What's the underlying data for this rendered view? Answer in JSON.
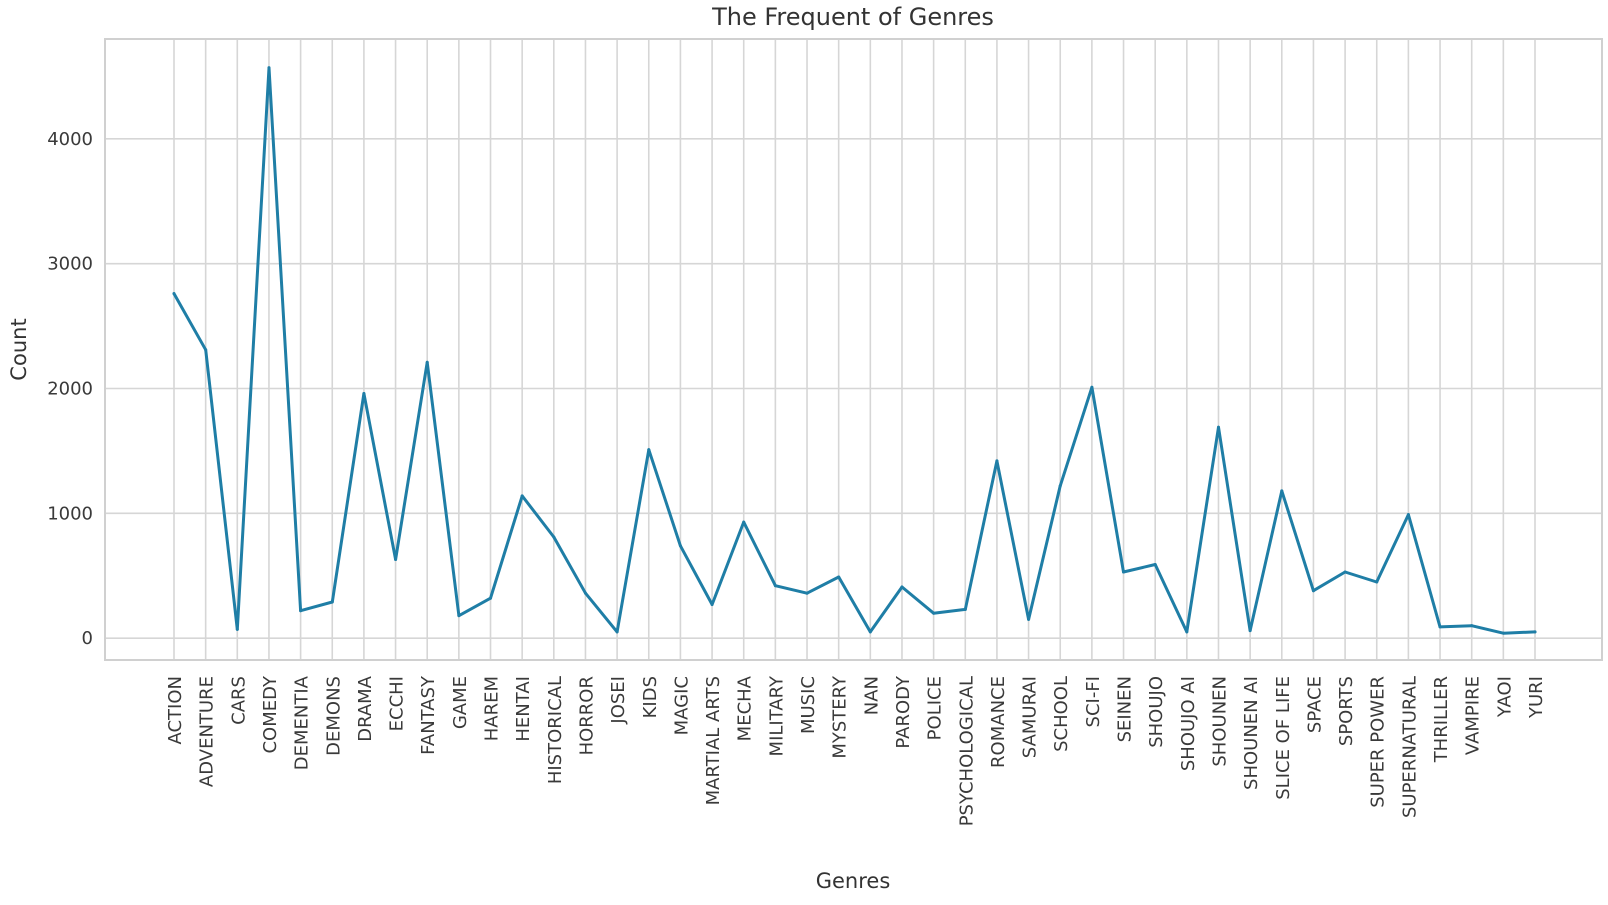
{
  "chart_data": {
    "type": "line",
    "title": "The Frequent of Genres",
    "xlabel": "Genres",
    "ylabel": "Count",
    "ylim": [
      -175,
      4800
    ],
    "yticks": [
      0,
      1000,
      2000,
      3000,
      4000
    ],
    "grid": true,
    "line_color": "#1f7ea6",
    "categories": [
      "ACTION",
      "ADVENTURE",
      "CARS",
      "COMEDY",
      "DEMENTIA",
      "DEMONS",
      "DRAMA",
      "ECCHI",
      "FANTASY",
      "GAME",
      "HAREM",
      "HENTAI",
      "HISTORICAL",
      "HORROR",
      "JOSEI",
      "KIDS",
      "MAGIC",
      "MARTIAL ARTS",
      "MECHA",
      "MILITARY",
      "MUSIC",
      "MYSTERY",
      "NAN",
      "PARODY",
      "POLICE",
      "PSYCHOLOGICAL",
      "ROMANCE",
      "SAMURAI",
      "SCHOOL",
      "SCI-FI",
      "SEINEN",
      "SHOUJO",
      "SHOUJO AI",
      "SHOUNEN",
      "SHOUNEN AI",
      "SLICE OF LIFE",
      "SPACE",
      "SPORTS",
      "SUPER POWER",
      "SUPERNATURAL",
      "THRILLER",
      "VAMPIRE",
      "YAOI",
      "YURI"
    ],
    "series": [
      {
        "values": [
          2760,
          2310,
          70,
          4570,
          220,
          290,
          1960,
          630,
          2210,
          180,
          320,
          1140,
          810,
          360,
          50,
          1510,
          740,
          270,
          930,
          420,
          360,
          490,
          50,
          410,
          200,
          230,
          1420,
          150,
          1220,
          2010,
          530,
          590,
          50,
          1690,
          60,
          1180,
          380,
          530,
          450,
          990,
          90,
          100,
          40,
          50
        ]
      }
    ]
  }
}
